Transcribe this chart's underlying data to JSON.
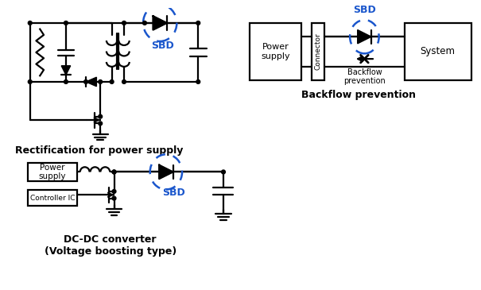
{
  "background_color": "#ffffff",
  "line_color": "#000000",
  "sbd_color": "#1a56cc",
  "label1": "Rectification for power supply",
  "label2": "Backflow prevention",
  "label3": "DC-DC converter\n(Voltage boosting type)",
  "sbd_text": "SBD",
  "power_supply_text": "Power\nsupply",
  "system_text": "System",
  "connector_text": "Connector",
  "backflow_text": "Backflow\nprevention",
  "controller_text": "Controller IC",
  "lw": 1.6
}
